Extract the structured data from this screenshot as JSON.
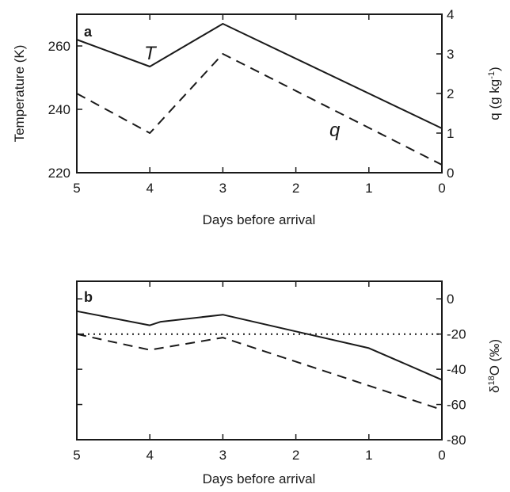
{
  "chart_data": [
    {
      "panel": "a",
      "type": "line",
      "xlabel": "Days before arrival",
      "xlim": [
        5,
        0
      ],
      "x_ticks": [
        "5",
        "4",
        "3",
        "2",
        "1",
        "0"
      ],
      "ylabel_left": "Temperature (K)",
      "ylim_left": [
        220,
        270
      ],
      "y_ticks_left": [
        "260",
        "240",
        "220"
      ],
      "ylabel_right": "q (g kg",
      "ylabel_right_superscript": "-1",
      "ylabel_right_suffix": ")",
      "ylim_right": [
        0,
        4
      ],
      "y_ticks_right": [
        "4",
        "3",
        "2",
        "1",
        "0"
      ],
      "series": [
        {
          "name": "T",
          "axis": "left",
          "style": "solid",
          "x": [
            5,
            4,
            3,
            0
          ],
          "y": [
            262,
            253.5,
            267,
            234
          ]
        },
        {
          "name": "q",
          "axis": "right",
          "style": "dashed",
          "x": [
            5,
            4,
            3,
            0
          ],
          "y": [
            2.0,
            1.0,
            3.0,
            0.2
          ]
        }
      ]
    },
    {
      "panel": "b",
      "type": "line",
      "xlabel": "Days before arrival",
      "xlim": [
        5,
        0
      ],
      "x_ticks": [
        "5",
        "4",
        "3",
        "2",
        "1",
        "0"
      ],
      "ylabel_right_prefix": "δ",
      "ylabel_right_superscript": "18",
      "ylabel_right": "O (‰)",
      "ylim_right": [
        -80,
        10
      ],
      "y_ticks_right": [
        "0",
        "-20",
        "-40",
        "-60",
        "-80"
      ],
      "series": [
        {
          "style": "solid",
          "x": [
            5,
            4,
            3.85,
            3,
            1,
            0
          ],
          "y": [
            -7,
            -15,
            -13,
            -9,
            -28,
            -46
          ]
        },
        {
          "style": "dashed",
          "x": [
            5,
            4,
            3,
            0
          ],
          "y": [
            -20,
            -29,
            -22,
            -63
          ]
        },
        {
          "style": "dotted",
          "x": [
            5,
            0
          ],
          "y": [
            -20,
            -20
          ]
        }
      ]
    }
  ]
}
